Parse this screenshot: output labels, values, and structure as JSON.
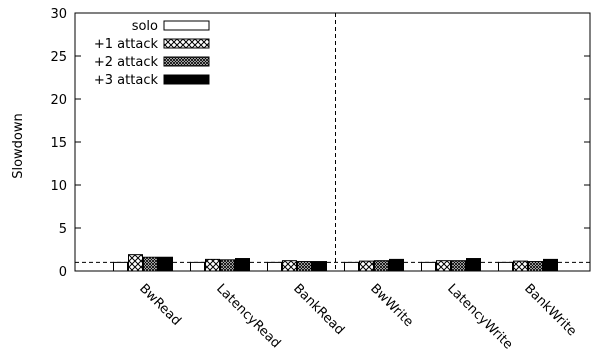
{
  "chart_data": {
    "type": "bar",
    "ylabel": "Slowdown",
    "xlabel": "",
    "ylim": [
      0,
      30
    ],
    "yticks": [
      0,
      5,
      10,
      15,
      20,
      25,
      30
    ],
    "categories": [
      "BwRead",
      "LatencyRead",
      "BankRead",
      "BwWrite",
      "LatencyWrite",
      "BankWrite"
    ],
    "series": [
      {
        "name": "solo",
        "fill": "white",
        "values": [
          1.0,
          1.0,
          1.0,
          1.0,
          1.0,
          1.0
        ]
      },
      {
        "name": "+1 attack",
        "fill": "crosshatch",
        "values": [
          1.9,
          1.35,
          1.2,
          1.15,
          1.2,
          1.15
        ]
      },
      {
        "name": "+2 attack",
        "fill": "dense-crosshatch",
        "values": [
          1.6,
          1.3,
          1.1,
          1.2,
          1.2,
          1.1
        ]
      },
      {
        "name": "+3 attack",
        "fill": "black",
        "values": [
          1.6,
          1.45,
          1.1,
          1.35,
          1.45,
          1.35
        ]
      }
    ],
    "reference_line": {
      "y": 1,
      "style": "dashed"
    },
    "group_separator": {
      "between": [
        "BankRead",
        "BwWrite"
      ],
      "style": "dashed"
    },
    "legend": "top-left",
    "grid": false
  }
}
